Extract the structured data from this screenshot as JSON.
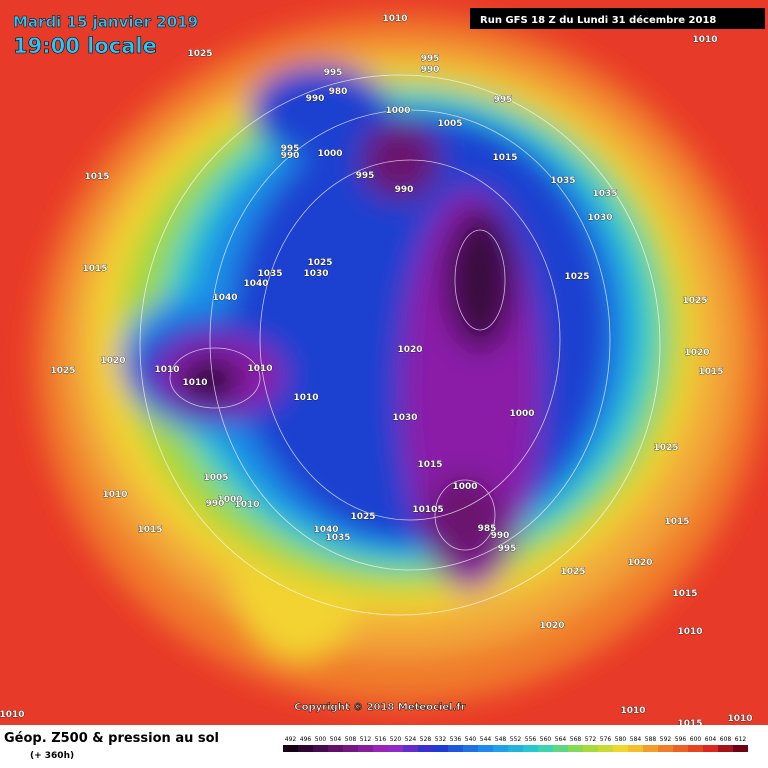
{
  "header": {
    "date": "Mardi 15 janvier 2019",
    "time": "19:00 locale",
    "run": "Run GFS 18 Z du Lundi 31 décembre 2018"
  },
  "footer": {
    "title": "Géop. Z500 & pression au sol",
    "lead": "(+ 360h)",
    "copyright": "Copyright © 2018 Meteociel.fr"
  },
  "legend": {
    "values": [
      492,
      496,
      500,
      504,
      508,
      512,
      516,
      520,
      524,
      528,
      532,
      536,
      540,
      544,
      548,
      552,
      556,
      560,
      564,
      568,
      572,
      576,
      580,
      584,
      588,
      592,
      596,
      600,
      604,
      608,
      612
    ]
  },
  "isobars": [
    "1010",
    "1010",
    "1025",
    "995",
    "995",
    "990",
    "995",
    "980",
    "990",
    "1000",
    "1005",
    "995",
    "990",
    "1000",
    "995",
    "990",
    "1015",
    "1035",
    "1035",
    "1030",
    "1015",
    "1015",
    "1035",
    "1025",
    "1030",
    "1040",
    "1040",
    "1025",
    "1025",
    "1020",
    "1020",
    "1025",
    "1010",
    "1010",
    "1010",
    "1010",
    "1020",
    "1015",
    "1030",
    "1000",
    "1025",
    "1015",
    "1005",
    "1000",
    "1010",
    "1000",
    "990",
    "1010",
    "1015",
    "1025",
    "1040",
    "1035",
    "10105",
    "990",
    "985",
    "995",
    "1015",
    "1020",
    "1025",
    "1015",
    "1020",
    "1010",
    "1010",
    "1010",
    "1015",
    "1010"
  ]
}
